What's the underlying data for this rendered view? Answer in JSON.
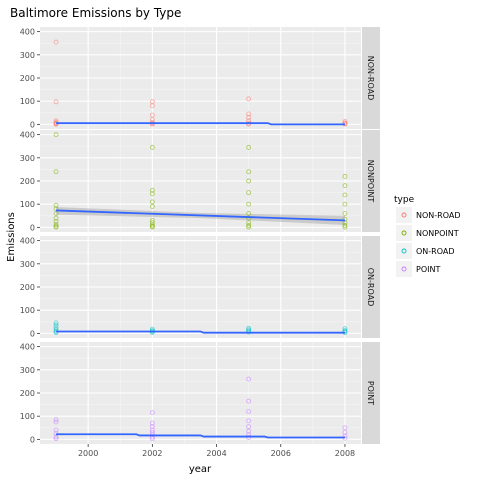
{
  "chart_data": {
    "type": "scatter",
    "title": "Baltimore Emissions by Type",
    "xlabel": "year",
    "ylabel": "Emissions",
    "xlim": [
      1998.5,
      2008.5
    ],
    "x_ticks": [
      2000,
      2002,
      2004,
      2006,
      2008
    ],
    "ylim": [
      -20,
      420
    ],
    "y_ticks": [
      0,
      100,
      200,
      300,
      400
    ],
    "grid": true,
    "legend_position": "right",
    "legend_title": "type",
    "panels": [
      {
        "name": "NON-ROAD",
        "color": "#f8766d",
        "points": [
          [
            1999,
            355
          ],
          [
            1999,
            97
          ],
          [
            1999,
            15
          ],
          [
            1999,
            8
          ],
          [
            1999,
            4
          ],
          [
            1999,
            2
          ],
          [
            1999,
            1
          ],
          [
            2002,
            98
          ],
          [
            2002,
            80
          ],
          [
            2002,
            40
          ],
          [
            2002,
            20
          ],
          [
            2002,
            8
          ],
          [
            2002,
            3
          ],
          [
            2002,
            1
          ],
          [
            2005,
            110
          ],
          [
            2005,
            45
          ],
          [
            2005,
            30
          ],
          [
            2005,
            15
          ],
          [
            2005,
            5
          ],
          [
            2005,
            1
          ],
          [
            2008,
            12
          ],
          [
            2008,
            6
          ],
          [
            2008,
            3
          ],
          [
            2008,
            1
          ]
        ],
        "trend": [
          [
            1999,
            5
          ],
          [
            2001.5,
            5
          ],
          [
            2005.6,
            5
          ],
          [
            2005.7,
            0
          ],
          [
            2008,
            0
          ]
        ],
        "band": null
      },
      {
        "name": "NONPOINT",
        "color": "#7cae00",
        "points": [
          [
            1999,
            400
          ],
          [
            1999,
            240
          ],
          [
            1999,
            95
          ],
          [
            1999,
            80
          ],
          [
            1999,
            60
          ],
          [
            1999,
            40
          ],
          [
            1999,
            25
          ],
          [
            1999,
            12
          ],
          [
            1999,
            5
          ],
          [
            1999,
            1
          ],
          [
            2002,
            345
          ],
          [
            2002,
            160
          ],
          [
            2002,
            145
          ],
          [
            2002,
            110
          ],
          [
            2002,
            90
          ],
          [
            2002,
            30
          ],
          [
            2002,
            20
          ],
          [
            2002,
            10
          ],
          [
            2002,
            5
          ],
          [
            2002,
            1
          ],
          [
            2005,
            345
          ],
          [
            2005,
            240
          ],
          [
            2005,
            200
          ],
          [
            2005,
            150
          ],
          [
            2005,
            100
          ],
          [
            2005,
            60
          ],
          [
            2005,
            40
          ],
          [
            2005,
            20
          ],
          [
            2005,
            8
          ],
          [
            2005,
            1
          ],
          [
            2008,
            220
          ],
          [
            2008,
            180
          ],
          [
            2008,
            140
          ],
          [
            2008,
            100
          ],
          [
            2008,
            60
          ],
          [
            2008,
            35
          ],
          [
            2008,
            20
          ],
          [
            2008,
            8
          ],
          [
            2008,
            1
          ]
        ],
        "trend": [
          [
            1999,
            73
          ],
          [
            2008,
            30
          ]
        ],
        "band": [
          [
            1999,
            55,
            88
          ],
          [
            2003.5,
            40,
            62
          ],
          [
            2008,
            10,
            50
          ]
        ]
      },
      {
        "name": "ON-ROAD",
        "color": "#00bfc4",
        "points": [
          [
            1999,
            45
          ],
          [
            1999,
            35
          ],
          [
            1999,
            25
          ],
          [
            1999,
            15
          ],
          [
            1999,
            8
          ],
          [
            1999,
            3
          ],
          [
            2002,
            18
          ],
          [
            2002,
            12
          ],
          [
            2002,
            8
          ],
          [
            2002,
            4
          ],
          [
            2005,
            22
          ],
          [
            2005,
            15
          ],
          [
            2005,
            10
          ],
          [
            2005,
            5
          ],
          [
            2008,
            20
          ],
          [
            2008,
            12
          ],
          [
            2008,
            8
          ],
          [
            2008,
            3
          ]
        ],
        "trend": [
          [
            1999,
            8
          ],
          [
            2003.5,
            8
          ],
          [
            2003.6,
            3
          ],
          [
            2008,
            3
          ]
        ],
        "band": null
      },
      {
        "name": "POINT",
        "color": "#c77cff",
        "points": [
          [
            1999,
            85
          ],
          [
            1999,
            75
          ],
          [
            1999,
            40
          ],
          [
            1999,
            25
          ],
          [
            1999,
            10
          ],
          [
            1999,
            3
          ],
          [
            2002,
            115
          ],
          [
            2002,
            70
          ],
          [
            2002,
            55
          ],
          [
            2002,
            40
          ],
          [
            2002,
            30
          ],
          [
            2002,
            20
          ],
          [
            2002,
            10
          ],
          [
            2002,
            3
          ],
          [
            2005,
            260
          ],
          [
            2005,
            165
          ],
          [
            2005,
            120
          ],
          [
            2005,
            80
          ],
          [
            2005,
            55
          ],
          [
            2005,
            35
          ],
          [
            2005,
            20
          ],
          [
            2005,
            8
          ],
          [
            2008,
            50
          ],
          [
            2008,
            30
          ],
          [
            2008,
            15
          ],
          [
            2008,
            5
          ]
        ],
        "trend": [
          [
            1999,
            22
          ],
          [
            2001.5,
            22
          ],
          [
            2001.6,
            17
          ],
          [
            2003.5,
            17
          ],
          [
            2003.6,
            12
          ],
          [
            2005.5,
            12
          ],
          [
            2005.6,
            8
          ],
          [
            2008,
            8
          ]
        ],
        "band": null
      }
    ],
    "trend_color": "#3366ff"
  }
}
